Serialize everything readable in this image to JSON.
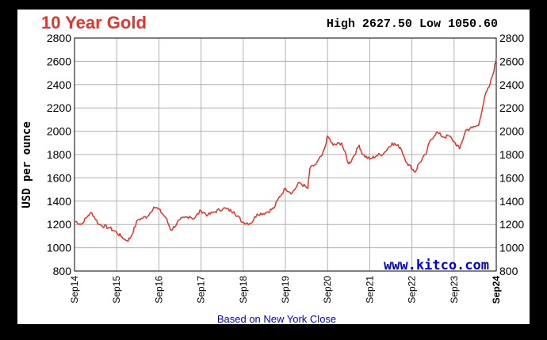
{
  "header": {
    "title": "10 Year Gold",
    "high_label": "High",
    "high_value": "2627.50",
    "low_label": "Low",
    "low_value": "1050.60"
  },
  "watermark": "www.kitco.com",
  "footnote": "Based on New York Close",
  "colors": {
    "title": "#e8322a",
    "line": "#e8322a",
    "watermark": "#0000e0",
    "grid": "#b0b0b0",
    "background": "#000000"
  },
  "chart_data": {
    "type": "line",
    "title": "10 Year Gold",
    "xlabel": "",
    "ylabel": "USD per ounce",
    "ylim": [
      800,
      2800
    ],
    "yticks": [
      800,
      1000,
      1200,
      1400,
      1600,
      1800,
      2000,
      2200,
      2400,
      2600,
      2800
    ],
    "xticks": [
      "Sep14",
      "Sep15",
      "Sep16",
      "Sep17",
      "Sep18",
      "Sep19",
      "Sep20",
      "Sep21",
      "Sep22",
      "Sep23",
      "Sep24"
    ],
    "grid": true,
    "dual_y_axis": true,
    "series": [
      {
        "x": [
          2014.67,
          2014.83,
          2015.0,
          2015.08,
          2015.25,
          2015.5,
          2015.67,
          2015.8,
          2015.92,
          2016.0,
          2016.17,
          2016.4,
          2016.55,
          2016.67,
          2016.83,
          2016.96,
          2017.17,
          2017.4,
          2017.5,
          2017.67,
          2017.83,
          2018.0,
          2018.2,
          2018.45,
          2018.65,
          2018.85,
          2019.0,
          2019.2,
          2019.4,
          2019.5,
          2019.67,
          2019.83,
          2020.0,
          2020.2,
          2020.25,
          2020.4,
          2020.55,
          2020.6,
          2020.67,
          2020.8,
          2021.0,
          2021.17,
          2021.25,
          2021.42,
          2021.5,
          2021.67,
          2021.83,
          2022.0,
          2022.2,
          2022.4,
          2022.55,
          2022.75,
          2022.83,
          2023.0,
          2023.1,
          2023.25,
          2023.42,
          2023.55,
          2023.67,
          2023.8,
          2023.95,
          2024.1,
          2024.25,
          2024.4,
          2024.5,
          2024.6,
          2024.67
        ],
        "values": [
          1230,
          1200,
          1280,
          1300,
          1200,
          1170,
          1130,
          1090,
          1060,
          1090,
          1240,
          1270,
          1350,
          1330,
          1260,
          1150,
          1240,
          1270,
          1250,
          1320,
          1280,
          1310,
          1340,
          1310,
          1220,
          1210,
          1290,
          1300,
          1340,
          1420,
          1510,
          1470,
          1560,
          1510,
          1680,
          1720,
          1800,
          1850,
          1960,
          1880,
          1900,
          1720,
          1760,
          1880,
          1800,
          1760,
          1790,
          1810,
          1900,
          1860,
          1730,
          1650,
          1720,
          1800,
          1920,
          1990,
          1950,
          1960,
          1910,
          1850,
          2010,
          2030,
          2050,
          2300,
          2380,
          2500,
          2627
        ]
      }
    ]
  }
}
